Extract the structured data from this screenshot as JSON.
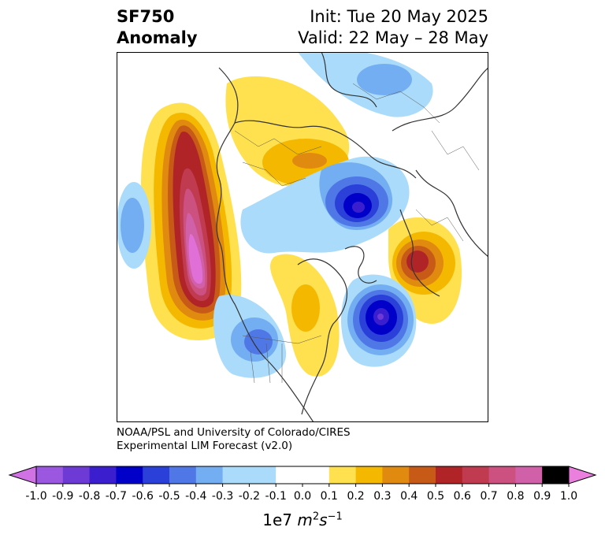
{
  "title": {
    "left_line1": "SF750",
    "left_line2": "Anomaly",
    "right_line1": "Init: Tue 20 May 2025",
    "right_line2": "Valid: 22 May – 28 May"
  },
  "credit": {
    "line1": "NOAA/PSL and University of Colorado/CIRES",
    "line2": "Experimental LIM Forecast (v2.0)"
  },
  "colorbar": {
    "ticks": [
      "-1.0",
      "-0.9",
      "-0.8",
      "-0.7",
      "-0.6",
      "-0.5",
      "-0.4",
      "-0.3",
      "-0.2",
      "-0.1",
      "0.0",
      "0.1",
      "0.2",
      "0.3",
      "0.4",
      "0.5",
      "0.6",
      "0.7",
      "0.8",
      "0.9",
      "1.0"
    ],
    "colors": [
      "#9b57e0",
      "#6e3ad6",
      "#3b1fcf",
      "#0000c8",
      "#2a40d8",
      "#4f78e6",
      "#74aef2",
      "#aadbfb",
      "#ffffff",
      "#ffe14f",
      "#f5b800",
      "#e08a10",
      "#c85a18",
      "#b02428",
      "#c03a50",
      "#cc5080",
      "#d060a8"
    ],
    "under_color": "#d071e4",
    "over_color": "#ea7fdd",
    "unit_base": "1e7",
    "unit_expr": "m",
    "unit_sup1": "2",
    "unit_s": "s",
    "unit_sup2": "−1"
  }
}
